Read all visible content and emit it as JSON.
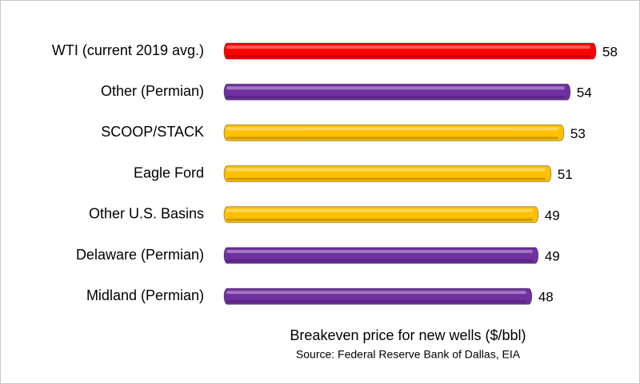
{
  "chart_data": {
    "type": "hbar",
    "categories": [
      "WTI (current 2019 avg.)",
      "Other (Permian)",
      "SCOOP/STACK",
      "Eagle Ford",
      "Other U.S. Basins",
      "Delaware (Permian)",
      "Midland (Permian)"
    ],
    "values": [
      58,
      54,
      53,
      51,
      49,
      49,
      48
    ],
    "colors": [
      "#ff0000",
      "#7030a0",
      "#ffc000",
      "#ffc000",
      "#ffc000",
      "#7030a0",
      "#7030a0"
    ],
    "x_label": "Breakeven price for new wells ($/bbl)",
    "source": "Source: Federal Reserve Bank of Dallas, EIA"
  }
}
